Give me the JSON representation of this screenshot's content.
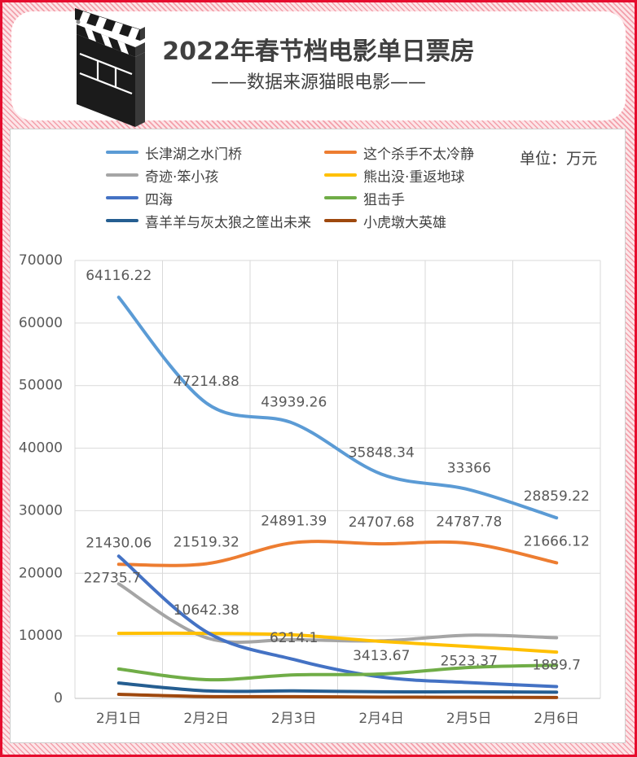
{
  "header": {
    "title": "2022年春节档电影单日票房",
    "subtitle": "——数据来源猫眼电影——",
    "icon": "clapperboard-icon"
  },
  "chart_data": {
    "type": "line",
    "unit_label": "单位：万元",
    "categories": [
      "2月1日",
      "2月2日",
      "2月3日",
      "2月4日",
      "2月5日",
      "2月6日"
    ],
    "yticks": [
      0,
      10000,
      20000,
      30000,
      40000,
      50000,
      60000,
      70000
    ],
    "ylim": [
      0,
      70000
    ],
    "grid": true,
    "smooth": true,
    "legend": "top",
    "series": [
      {
        "name": "长津湖之水门桥",
        "color": "#5B9BD5",
        "data_labels": true,
        "values": [
          64116.22,
          47214.88,
          43939.26,
          35848.34,
          33366,
          28859.22
        ]
      },
      {
        "name": "这个杀手不太冷静",
        "color": "#ED7D31",
        "data_labels": true,
        "values": [
          21430.06,
          21519.32,
          24891.39,
          24707.68,
          24787.78,
          21666.12
        ]
      },
      {
        "name": "奇迹·笨小孩",
        "color": "#A5A5A5",
        "data_labels": false,
        "values": [
          18300,
          9700,
          9400,
          9200,
          10100,
          9700
        ]
      },
      {
        "name": "熊出没·重返地球",
        "color": "#FFC000",
        "data_labels": false,
        "values": [
          10400,
          10400,
          10150,
          9100,
          8300,
          7400
        ]
      },
      {
        "name": "四海",
        "color": "#4472C4",
        "data_labels": true,
        "values": [
          22735.7,
          10642.38,
          6214.1,
          3413.67,
          2523.37,
          1889.7
        ]
      },
      {
        "name": "狙击手",
        "color": "#70AD47",
        "data_labels": false,
        "values": [
          4700,
          3000,
          3750,
          3900,
          4950,
          5300
        ]
      },
      {
        "name": "喜羊羊与灰太狼之筐出未来",
        "color": "#255E91",
        "data_labels": false,
        "values": [
          2450,
          1200,
          1200,
          1050,
          1050,
          1000
        ]
      },
      {
        "name": "小虎墩大英雄",
        "color": "#9E480E",
        "data_labels": false,
        "values": [
          650,
          300,
          280,
          200,
          180,
          150
        ]
      }
    ]
  }
}
